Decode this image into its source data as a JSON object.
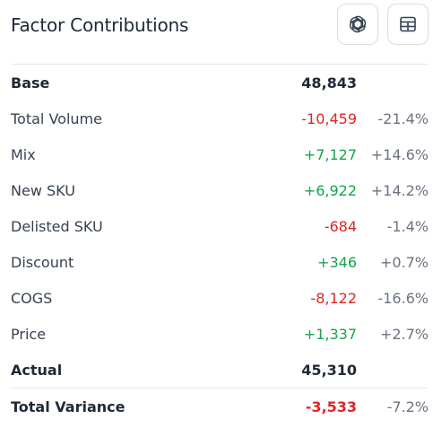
{
  "header": {
    "title": "Factor Contributions",
    "ai_button_icon": "openai-logo-icon",
    "table_button_icon": "table-icon"
  },
  "rows": [
    {
      "label": "Base",
      "value": "48,843",
      "pct": "",
      "kind": "neutral",
      "bold": true
    },
    {
      "label": "Total Volume",
      "value": "-10,459",
      "pct": "-21.4%",
      "kind": "neg",
      "bold": false
    },
    {
      "label": "Mix",
      "value": "+7,127",
      "pct": "+14.6%",
      "kind": "pos",
      "bold": false
    },
    {
      "label": "New SKU",
      "value": "+6,922",
      "pct": "+14.2%",
      "kind": "pos",
      "bold": false
    },
    {
      "label": "Delisted SKU",
      "value": "-684",
      "pct": "-1.4%",
      "kind": "neg",
      "bold": false
    },
    {
      "label": "Discount",
      "value": "+346",
      "pct": "+0.7%",
      "kind": "pos",
      "bold": false
    },
    {
      "label": "COGS",
      "value": "-8,122",
      "pct": "-16.6%",
      "kind": "neg",
      "bold": false
    },
    {
      "label": "Price",
      "value": "+1,337",
      "pct": "+2.7%",
      "kind": "pos",
      "bold": false
    },
    {
      "label": "Actual",
      "value": "45,310",
      "pct": "",
      "kind": "neutral",
      "bold": true
    }
  ],
  "total": {
    "label": "Total Variance",
    "value": "-3,533",
    "pct": "-7.2%"
  },
  "colors": {
    "positive": "#16a34a",
    "negative": "#dc2626",
    "muted": "#6b7280",
    "divider": "#e5e7eb"
  }
}
